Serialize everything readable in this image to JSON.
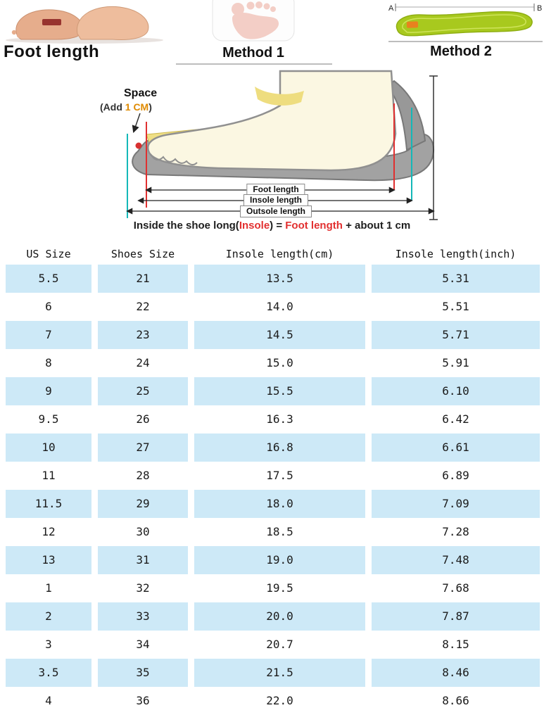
{
  "top": {
    "foot_length_label": "Foot length",
    "method1_label": "Method 1",
    "method2_label": "Method 2",
    "marker_a": "A",
    "marker_b": "B"
  },
  "diagram": {
    "space_label": "Space",
    "add_prefix": "(Add ",
    "add_value": "1 CM",
    "add_suffix": ")",
    "measure_labels": [
      "Foot length",
      "Insole length",
      "Outsole length"
    ],
    "caption_part1": "Inside the shoe long(",
    "caption_insole": "Insole",
    "caption_part2": ") = ",
    "caption_foot_length": "Foot length",
    "caption_part3": " + about 1 cm"
  },
  "table": {
    "headers": [
      "US Size",
      "Shoes Size",
      "Insole length(cm)",
      "Insole length(inch)"
    ],
    "rows": [
      [
        "5.5",
        "21",
        "13.5",
        "5.31"
      ],
      [
        "6",
        "22",
        "14.0",
        "5.51"
      ],
      [
        "7",
        "23",
        "14.5",
        "5.71"
      ],
      [
        "8",
        "24",
        "15.0",
        "5.91"
      ],
      [
        "9",
        "25",
        "15.5",
        "6.10"
      ],
      [
        "9.5",
        "26",
        "16.3",
        "6.42"
      ],
      [
        "10",
        "27",
        "16.8",
        "6.61"
      ],
      [
        "11",
        "28",
        "17.5",
        "6.89"
      ],
      [
        "11.5",
        "29",
        "18.0",
        "7.09"
      ],
      [
        "12",
        "30",
        "18.5",
        "7.28"
      ],
      [
        "13",
        "31",
        "19.0",
        "7.48"
      ],
      [
        "1",
        "32",
        "19.5",
        "7.68"
      ],
      [
        "2",
        "33",
        "20.0",
        "7.87"
      ],
      [
        "3",
        "34",
        "20.7",
        "8.15"
      ],
      [
        "3.5",
        "35",
        "21.5",
        "8.46"
      ],
      [
        "4",
        "36",
        "22.0",
        "8.66"
      ]
    ]
  },
  "colors": {
    "stripe_blue": "#cde9f7",
    "accent_red": "#e23030",
    "accent_orange": "#df8a00",
    "accent_teal": "#14b8b8",
    "insole_green": "#a8c91e",
    "insole_yellow": "#efdf85",
    "shoe_gray": "#a2a2a2"
  },
  "chart_data": {
    "type": "table",
    "columns": [
      "US Size",
      "Shoes Size",
      "Insole length(cm)",
      "Insole length(inch)"
    ],
    "rows": [
      [
        "5.5",
        "21",
        "13.5",
        "5.31"
      ],
      [
        "6",
        "22",
        "14.0",
        "5.51"
      ],
      [
        "7",
        "23",
        "14.5",
        "5.71"
      ],
      [
        "8",
        "24",
        "15.0",
        "5.91"
      ],
      [
        "9",
        "25",
        "15.5",
        "6.10"
      ],
      [
        "9.5",
        "26",
        "16.3",
        "6.42"
      ],
      [
        "10",
        "27",
        "16.8",
        "6.61"
      ],
      [
        "11",
        "28",
        "17.5",
        "6.89"
      ],
      [
        "11.5",
        "29",
        "18.0",
        "7.09"
      ],
      [
        "12",
        "30",
        "18.5",
        "7.28"
      ],
      [
        "13",
        "31",
        "19.0",
        "7.48"
      ],
      [
        "1",
        "32",
        "19.5",
        "7.68"
      ],
      [
        "2",
        "33",
        "20.0",
        "7.87"
      ],
      [
        "3",
        "34",
        "20.7",
        "8.15"
      ],
      [
        "3.5",
        "35",
        "21.5",
        "8.46"
      ],
      [
        "4",
        "36",
        "22.0",
        "8.66"
      ]
    ],
    "notes": "Inside the shoe long(Insole) = Foot length + about 1 cm"
  }
}
